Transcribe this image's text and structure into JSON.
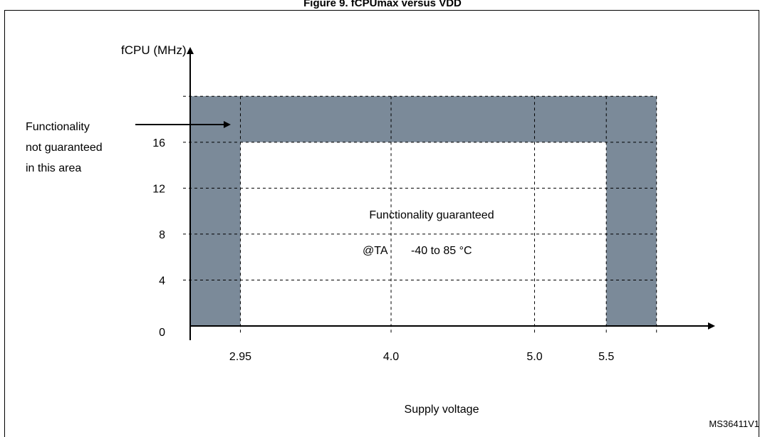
{
  "figure": {
    "title": "Figure 9. fCPUmax versus VDD",
    "reference": "MS36411V1"
  },
  "chart_data": {
    "type": "area",
    "ylabel": "fCPU (MHz)",
    "xlabel": "Supply voltage",
    "x_ticks": [
      "2.95",
      "4.0",
      "5.0",
      "5.5"
    ],
    "y_ticks": [
      "0",
      "4",
      "8",
      "12",
      "16"
    ],
    "x_domain": [
      2.6,
      6.05
    ],
    "y_domain": [
      0,
      22
    ],
    "guaranteed_region": {
      "x_range": [
        2.95,
        5.5
      ],
      "y_range": [
        0,
        16
      ],
      "label": "Functionality guaranteed",
      "condition_prefix": "@TA",
      "condition_value": "-40 to 85 °C"
    },
    "not_guaranteed_region": {
      "y_max": 20,
      "x_range": [
        2.6,
        5.85
      ],
      "label_lines": [
        "Functionality",
        "not guaranteed",
        "in this area"
      ],
      "color": "#7b8a99"
    },
    "grid": true
  }
}
